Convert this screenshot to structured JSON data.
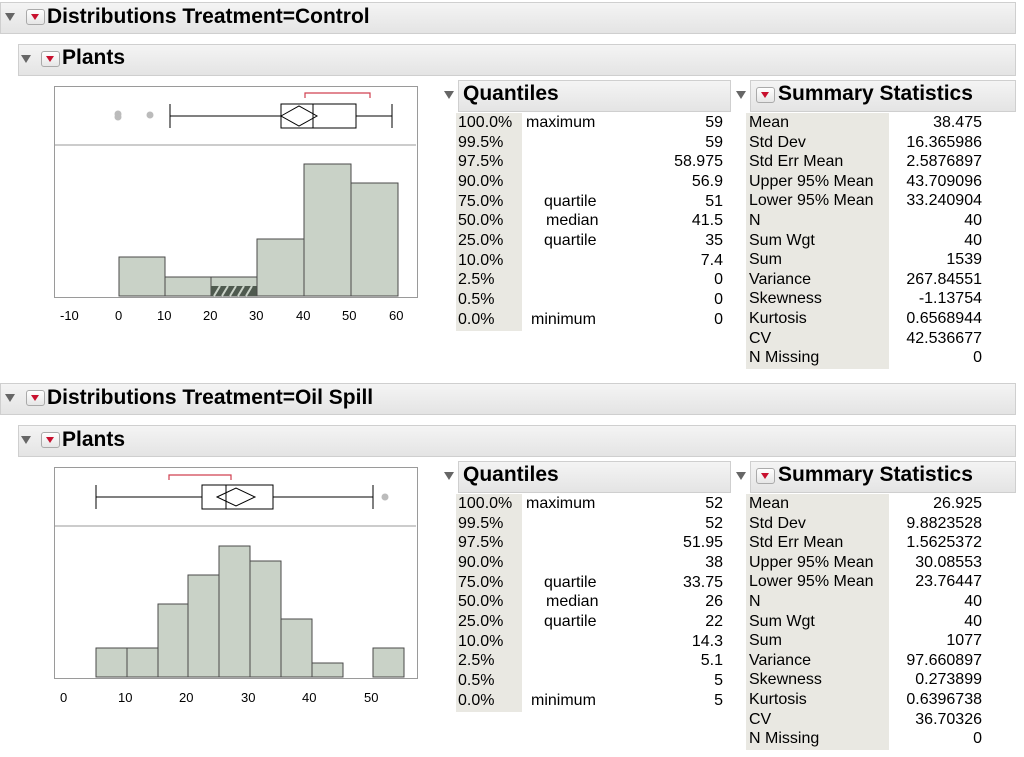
{
  "reports": [
    {
      "title": "Distributions Treatment=Control",
      "sub_title": "Plants",
      "quantiles_title": "Quantiles",
      "summary_title": "Summary Statistics",
      "axis_ticks": [
        "-10",
        "0",
        "10",
        "20",
        "30",
        "40",
        "50",
        "60"
      ],
      "quantiles": [
        {
          "pct": "100.0%",
          "label": "maximum",
          "value": "59"
        },
        {
          "pct": "99.5%",
          "label": "",
          "value": "59"
        },
        {
          "pct": "97.5%",
          "label": "",
          "value": "58.975"
        },
        {
          "pct": "90.0%",
          "label": "",
          "value": "56.9"
        },
        {
          "pct": "75.0%",
          "label": "quartile",
          "value": "51"
        },
        {
          "pct": "50.0%",
          "label": "median",
          "value": "41.5"
        },
        {
          "pct": "25.0%",
          "label": "quartile",
          "value": "35"
        },
        {
          "pct": "10.0%",
          "label": "",
          "value": "7.4"
        },
        {
          "pct": "2.5%",
          "label": "",
          "value": "0"
        },
        {
          "pct": "0.5%",
          "label": "",
          "value": "0"
        },
        {
          "pct": "0.0%",
          "label": "minimum",
          "value": "0"
        }
      ],
      "summary": [
        {
          "name": "Mean",
          "value": "38.475"
        },
        {
          "name": "Std Dev",
          "value": "16.365986"
        },
        {
          "name": "Std Err Mean",
          "value": "2.5876897"
        },
        {
          "name": "Upper 95% Mean",
          "value": "43.709096"
        },
        {
          "name": "Lower 95% Mean",
          "value": "33.240904"
        },
        {
          "name": "N",
          "value": "40"
        },
        {
          "name": "Sum Wgt",
          "value": "40"
        },
        {
          "name": "Sum",
          "value": "1539"
        },
        {
          "name": "Variance",
          "value": "267.84551"
        },
        {
          "name": "Skewness",
          "value": "-1.13754"
        },
        {
          "name": "Kurtosis",
          "value": "0.6568944"
        },
        {
          "name": "CV",
          "value": "42.536677"
        },
        {
          "name": "N Missing",
          "value": "0"
        }
      ]
    },
    {
      "title": "Distributions Treatment=Oil Spill",
      "sub_title": "Plants",
      "quantiles_title": "Quantiles",
      "summary_title": "Summary Statistics",
      "axis_ticks": [
        "0",
        "10",
        "20",
        "30",
        "40",
        "50"
      ],
      "quantiles": [
        {
          "pct": "100.0%",
          "label": "maximum",
          "value": "52"
        },
        {
          "pct": "99.5%",
          "label": "",
          "value": "52"
        },
        {
          "pct": "97.5%",
          "label": "",
          "value": "51.95"
        },
        {
          "pct": "90.0%",
          "label": "",
          "value": "38"
        },
        {
          "pct": "75.0%",
          "label": "quartile",
          "value": "33.75"
        },
        {
          "pct": "50.0%",
          "label": "median",
          "value": "26"
        },
        {
          "pct": "25.0%",
          "label": "quartile",
          "value": "22"
        },
        {
          "pct": "10.0%",
          "label": "",
          "value": "14.3"
        },
        {
          "pct": "2.5%",
          "label": "",
          "value": "5.1"
        },
        {
          "pct": "0.5%",
          "label": "",
          "value": "5"
        },
        {
          "pct": "0.0%",
          "label": "minimum",
          "value": "5"
        }
      ],
      "summary": [
        {
          "name": "Mean",
          "value": "26.925"
        },
        {
          "name": "Std Dev",
          "value": "9.8823528"
        },
        {
          "name": "Std Err Mean",
          "value": "1.5625372"
        },
        {
          "name": "Upper 95% Mean",
          "value": "30.08553"
        },
        {
          "name": "Lower 95% Mean",
          "value": "23.76447"
        },
        {
          "name": "N",
          "value": "40"
        },
        {
          "name": "Sum Wgt",
          "value": "40"
        },
        {
          "name": "Sum",
          "value": "1077"
        },
        {
          "name": "Variance",
          "value": "97.660897"
        },
        {
          "name": "Skewness",
          "value": "0.273899"
        },
        {
          "name": "Kurtosis",
          "value": "0.6396738"
        },
        {
          "name": "CV",
          "value": "36.70326"
        },
        {
          "name": "N Missing",
          "value": "0"
        }
      ]
    }
  ],
  "colors": {
    "bar_fill": "#c9d2c7",
    "bar_stroke": "#4a4a4a",
    "menu_red": "#c8102e",
    "bracket": "#d04050",
    "label_bg": "#e9e8e2"
  }
}
